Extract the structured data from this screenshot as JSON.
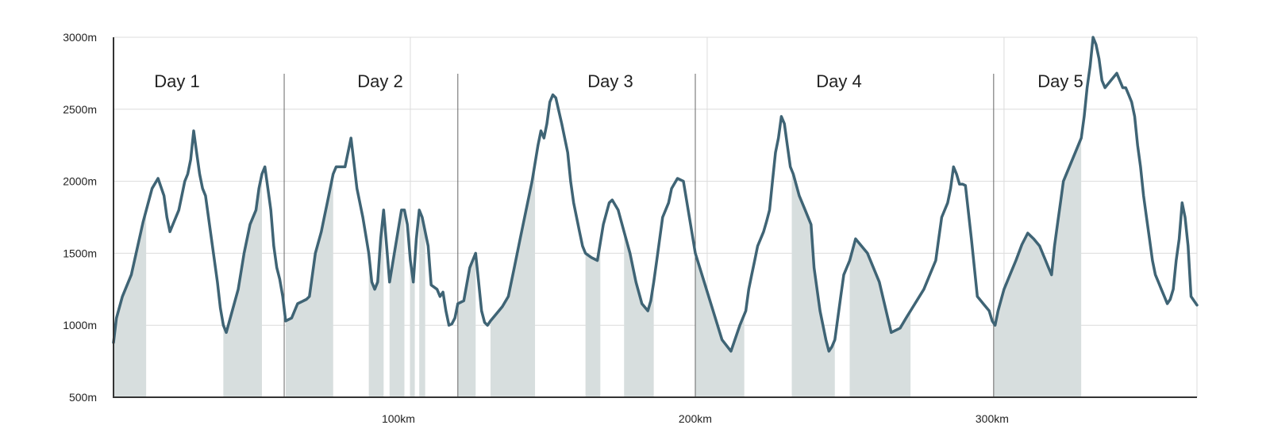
{
  "chart_data": {
    "type": "area",
    "title": "",
    "xlabel": "",
    "ylabel": "",
    "xlim": [
      0,
      365
    ],
    "ylim": [
      500,
      3000
    ],
    "grid": true,
    "y_ticks": [
      {
        "value": 500,
        "label": "500m"
      },
      {
        "value": 1000,
        "label": "1000m"
      },
      {
        "value": 1500,
        "label": "1500m"
      },
      {
        "value": 2000,
        "label": "2000m"
      },
      {
        "value": 2500,
        "label": "2500m"
      },
      {
        "value": 3000,
        "label": "3000m"
      }
    ],
    "x_ticks": [
      {
        "value": 100,
        "label": "100km"
      },
      {
        "value": 200,
        "label": "200km"
      },
      {
        "value": 300,
        "label": "300km"
      }
    ],
    "days": [
      {
        "label": "Day 1",
        "start": 0,
        "end": 57.5
      },
      {
        "label": "Day 2",
        "start": 57.5,
        "end": 116
      },
      {
        "label": "Day 3",
        "start": 116,
        "end": 196
      },
      {
        "label": "Day 4",
        "start": 196,
        "end": 296.5
      },
      {
        "label": "Day 5",
        "start": 296.5,
        "end": 365
      }
    ],
    "climbs": [
      [
        0,
        11
      ],
      [
        37,
        50
      ],
      [
        58,
        74
      ],
      [
        86,
        91
      ],
      [
        93,
        98
      ],
      [
        100,
        101.5
      ],
      [
        103,
        105
      ],
      [
        116,
        122
      ],
      [
        127,
        142
      ],
      [
        159,
        164
      ],
      [
        172,
        182
      ],
      [
        196,
        212.5
      ],
      [
        228.5,
        243
      ],
      [
        248,
        268.5
      ],
      [
        296.5,
        326
      ]
    ],
    "series": [
      {
        "x": [
          0,
          1,
          3,
          6,
          10,
          13,
          15,
          17,
          18,
          19,
          20,
          22,
          24,
          25,
          26,
          27,
          28,
          29,
          30,
          31,
          33,
          35,
          36,
          37,
          38,
          40,
          42,
          44,
          46,
          48,
          49,
          50,
          51,
          52,
          53,
          54,
          55,
          56,
          57,
          58,
          60,
          62,
          65,
          66,
          68,
          70,
          71,
          72,
          73,
          74,
          75,
          78,
          80,
          82,
          83,
          84,
          86,
          87,
          88,
          89,
          90,
          91,
          92,
          93,
          95,
          97,
          98,
          99,
          100,
          101,
          102,
          103,
          104,
          106,
          107,
          109,
          110,
          111,
          112,
          113,
          114,
          115,
          116,
          118,
          120,
          122,
          123,
          124,
          125,
          126,
          127,
          129,
          131,
          133,
          135,
          137,
          139,
          141,
          143,
          144,
          145,
          146,
          147,
          148,
          149,
          151,
          153,
          154,
          155,
          156,
          157,
          158,
          159,
          161,
          163,
          165,
          167,
          168,
          170,
          172,
          174,
          176,
          178,
          180,
          181,
          182,
          183,
          184,
          185,
          187,
          188,
          190,
          192,
          194,
          196,
          199,
          202,
          205,
          208,
          211,
          213,
          214,
          215,
          216,
          217,
          218,
          219,
          220,
          221,
          222,
          223,
          224,
          225,
          226,
          227,
          228,
          229,
          231,
          233,
          235,
          236,
          238,
          240,
          241,
          242,
          243,
          244,
          245,
          246,
          248,
          250,
          254,
          258,
          262,
          265,
          267,
          270,
          273,
          275,
          277,
          278,
          279,
          281,
          282,
          283,
          284,
          285,
          286,
          287,
          289,
          291,
          293,
          295,
          296,
          297,
          298,
          300,
          302,
          304,
          306,
          308,
          310,
          312,
          313,
          314,
          315,
          316,
          317,
          318,
          319,
          320,
          322,
          324,
          326,
          327,
          328,
          329,
          330,
          331,
          332,
          333,
          334,
          336,
          338,
          340,
          341,
          342,
          343,
          344,
          345,
          346,
          347,
          348,
          349,
          350,
          351,
          352,
          353,
          354,
          355,
          356,
          357,
          358,
          359,
          360,
          361,
          362,
          363,
          365
        ],
        "y": [
          880,
          1050,
          1200,
          1350,
          1720,
          1950,
          2020,
          1900,
          1750,
          1650,
          1700,
          1800,
          2000,
          2050,
          2150,
          2350,
          2200,
          2050,
          1950,
          1900,
          1600,
          1300,
          1120,
          1000,
          950,
          1100,
          1250,
          1500,
          1700,
          1800,
          1950,
          2050,
          2100,
          1950,
          1800,
          1550,
          1400,
          1320,
          1200,
          1030,
          1050,
          1150,
          1180,
          1200,
          1500,
          1650,
          1750,
          1850,
          1950,
          2050,
          2100,
          2100,
          2300,
          1950,
          1850,
          1750,
          1500,
          1300,
          1250,
          1300,
          1600,
          1800,
          1550,
          1300,
          1550,
          1800,
          1800,
          1700,
          1450,
          1300,
          1600,
          1800,
          1750,
          1550,
          1280,
          1250,
          1200,
          1230,
          1100,
          1000,
          1010,
          1050,
          1150,
          1170,
          1400,
          1500,
          1300,
          1100,
          1020,
          1000,
          1030,
          1080,
          1130,
          1200,
          1400,
          1600,
          1800,
          2000,
          2250,
          2350,
          2300,
          2400,
          2550,
          2600,
          2580,
          2400,
          2200,
          2000,
          1850,
          1750,
          1650,
          1550,
          1500,
          1470,
          1450,
          1700,
          1850,
          1870,
          1800,
          1650,
          1500,
          1300,
          1150,
          1100,
          1170,
          1300,
          1450,
          1600,
          1750,
          1850,
          1950,
          2020,
          2000,
          1750,
          1500,
          1300,
          1100,
          900,
          820,
          1000,
          1100,
          1250,
          1350,
          1450,
          1550,
          1600,
          1650,
          1720,
          1800,
          2000,
          2200,
          2300,
          2450,
          2400,
          2250,
          2100,
          2050,
          1900,
          1800,
          1700,
          1400,
          1100,
          900,
          820,
          850,
          900,
          1050,
          1200,
          1350,
          1450,
          1600,
          1500,
          1300,
          950,
          980,
          1050,
          1150,
          1250,
          1350,
          1450,
          1600,
          1750,
          1850,
          1950,
          2100,
          2050,
          1980,
          1980,
          1970,
          1600,
          1200,
          1150,
          1100,
          1030,
          1000,
          1100,
          1250,
          1350,
          1450,
          1560,
          1640,
          1600,
          1550,
          1500,
          1450,
          1400,
          1350,
          1550,
          1700,
          1850,
          2000,
          2100,
          2200,
          2300,
          2450,
          2650,
          2800,
          3000,
          2950,
          2850,
          2700,
          2650,
          2700,
          2750,
          2650,
          2650,
          2600,
          2550,
          2450,
          2250,
          2100,
          1900,
          1750,
          1600,
          1450,
          1350,
          1300,
          1250,
          1200,
          1150,
          1180,
          1250,
          1450,
          1600,
          1850,
          1750,
          1550,
          1200,
          1140
        ]
      }
    ]
  }
}
